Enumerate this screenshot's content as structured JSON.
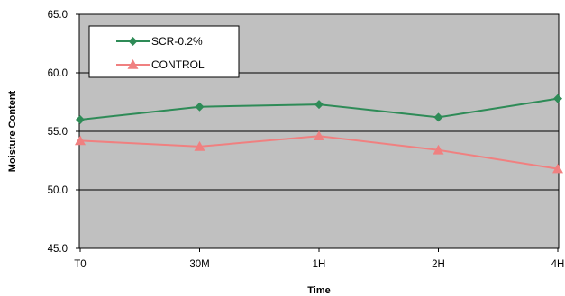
{
  "chart_data": {
    "type": "line",
    "title": "",
    "xlabel": "Time",
    "ylabel": "Moisture Content",
    "categories": [
      "T0",
      "30M",
      "1H",
      "2H",
      "4H"
    ],
    "ylim": [
      45.0,
      65.0
    ],
    "yticks": [
      "45.0",
      "50.0",
      "55.0",
      "60.0",
      "65.0"
    ],
    "grid": true,
    "legend": "top-left",
    "series": [
      {
        "name": "SCR-0.2%",
        "values": [
          56.0,
          57.1,
          57.3,
          56.2,
          57.8
        ],
        "color": "#2e8b57",
        "marker": "diamond"
      },
      {
        "name": "CONTROL",
        "values": [
          54.2,
          53.7,
          54.6,
          53.4,
          51.8
        ],
        "color": "#f08080",
        "marker": "triangle"
      }
    ],
    "plot_background": "#c0c0c0"
  }
}
